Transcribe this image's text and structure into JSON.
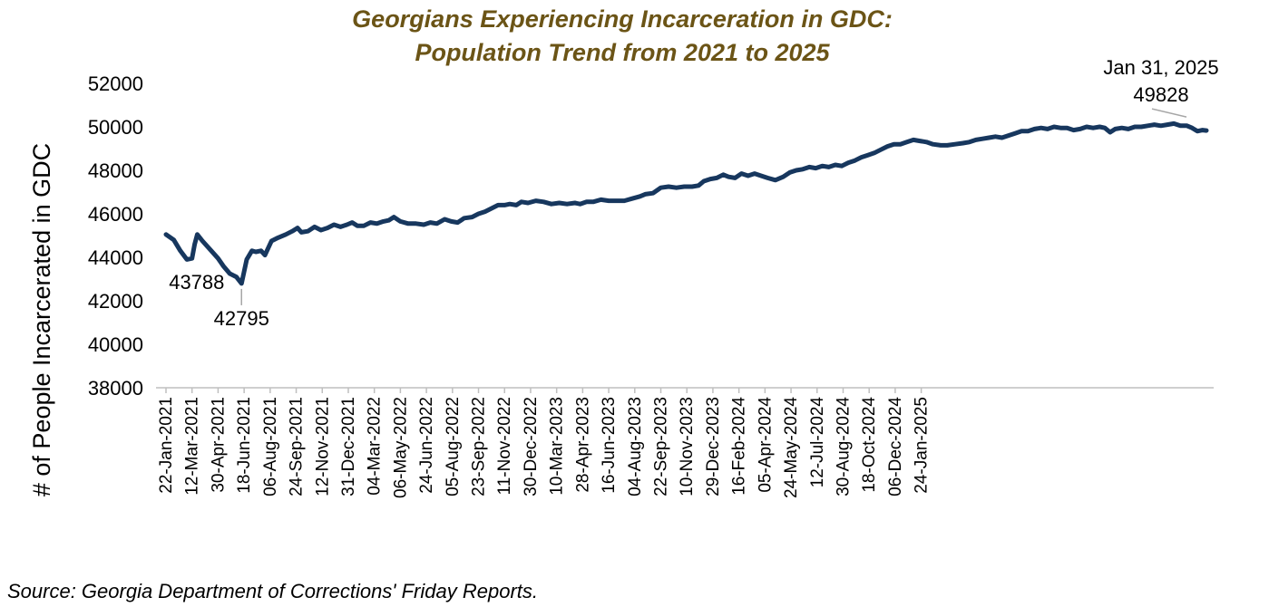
{
  "chart_data": {
    "type": "line",
    "title": [
      "Georgians Experiencing Incarceration in GDC:",
      "Population Trend from 2021 to 2025"
    ],
    "ylabel": "# of People Incarcerated in GDC",
    "xlabel": "",
    "ylim": [
      38000,
      52000
    ],
    "yticks": [
      "52000",
      "50000",
      "48000",
      "46000",
      "44000",
      "42000",
      "40000",
      "38000"
    ],
    "ytick_values": [
      52000,
      50000,
      48000,
      46000,
      44000,
      42000,
      40000,
      38000
    ],
    "xtick_labels": [
      "22-Jan-2021",
      "12-Mar-2021",
      "30-Apr-2021",
      "18-Jun-2021",
      "06-Aug-2021",
      "24-Sep-2021",
      "12-Nov-2021",
      "31-Dec-2021",
      "04-Mar-2022",
      "06-May-2022",
      "24-Jun-2022",
      "05-Aug-2022",
      "23-Sep-2022",
      "11-Nov-2022",
      "30-Dec-2022",
      "10-Mar-2023",
      "28-Apr-2023",
      "16-Jun-2023",
      "04-Aug-2023",
      "22-Sep-2023",
      "10-Nov-2023",
      "29-Dec-2023",
      "16-Feb-2024",
      "05-Apr-2024",
      "24-May-2024",
      "12-Jul-2024",
      "30-Aug-2024",
      "18-Oct-2024",
      "06-Dec-2024",
      "24-Jan-2025"
    ],
    "grid": false,
    "legend": "none",
    "line_color": "#17375e",
    "series": [
      {
        "values": [
          [
            0,
            45050
          ],
          [
            0.3,
            44800
          ],
          [
            0.55,
            44300
          ],
          [
            0.8,
            43900
          ],
          [
            1.0,
            43950
          ],
          [
            1.1,
            44600
          ],
          [
            1.2,
            45050
          ],
          [
            1.4,
            44750
          ],
          [
            1.7,
            44350
          ],
          [
            2.0,
            43950
          ],
          [
            2.2,
            43600
          ],
          [
            2.45,
            43250
          ],
          [
            2.7,
            43100
          ],
          [
            2.9,
            42795
          ],
          [
            3.1,
            43900
          ],
          [
            3.3,
            44300
          ],
          [
            3.45,
            44250
          ],
          [
            3.65,
            44300
          ],
          [
            3.8,
            44100
          ],
          [
            4.05,
            44750
          ],
          [
            4.3,
            44900
          ],
          [
            4.6,
            45050
          ],
          [
            4.85,
            45200
          ],
          [
            5.05,
            45350
          ],
          [
            5.2,
            45150
          ],
          [
            5.45,
            45200
          ],
          [
            5.7,
            45400
          ],
          [
            5.95,
            45250
          ],
          [
            6.2,
            45350
          ],
          [
            6.45,
            45500
          ],
          [
            6.7,
            45400
          ],
          [
            6.95,
            45500
          ],
          [
            7.15,
            45600
          ],
          [
            7.35,
            45450
          ],
          [
            7.6,
            45450
          ],
          [
            7.85,
            45600
          ],
          [
            8.1,
            45550
          ],
          [
            8.35,
            45650
          ],
          [
            8.55,
            45700
          ],
          [
            8.75,
            45850
          ],
          [
            9.0,
            45650
          ],
          [
            9.3,
            45550
          ],
          [
            9.6,
            45550
          ],
          [
            9.9,
            45500
          ],
          [
            10.15,
            45600
          ],
          [
            10.4,
            45550
          ],
          [
            10.7,
            45750
          ],
          [
            10.95,
            45650
          ],
          [
            11.2,
            45600
          ],
          [
            11.45,
            45800
          ],
          [
            11.75,
            45850
          ],
          [
            12.0,
            46000
          ],
          [
            12.25,
            46100
          ],
          [
            12.5,
            46250
          ],
          [
            12.75,
            46400
          ],
          [
            13.0,
            46400
          ],
          [
            13.2,
            46450
          ],
          [
            13.45,
            46400
          ],
          [
            13.65,
            46550
          ],
          [
            13.9,
            46500
          ],
          [
            14.2,
            46600
          ],
          [
            14.5,
            46550
          ],
          [
            14.8,
            46450
          ],
          [
            15.1,
            46500
          ],
          [
            15.4,
            46450
          ],
          [
            15.7,
            46500
          ],
          [
            15.9,
            46450
          ],
          [
            16.15,
            46550
          ],
          [
            16.4,
            46550
          ],
          [
            16.7,
            46650
          ],
          [
            17.0,
            46600
          ],
          [
            17.3,
            46600
          ],
          [
            17.6,
            46600
          ],
          [
            17.9,
            46700
          ],
          [
            18.2,
            46800
          ],
          [
            18.4,
            46900
          ],
          [
            18.7,
            46950
          ],
          [
            19.0,
            47200
          ],
          [
            19.3,
            47250
          ],
          [
            19.6,
            47200
          ],
          [
            19.9,
            47250
          ],
          [
            20.2,
            47250
          ],
          [
            20.45,
            47300
          ],
          [
            20.65,
            47500
          ],
          [
            20.9,
            47600
          ],
          [
            21.15,
            47650
          ],
          [
            21.4,
            47800
          ],
          [
            21.6,
            47700
          ],
          [
            21.85,
            47650
          ],
          [
            22.1,
            47850
          ],
          [
            22.35,
            47750
          ],
          [
            22.6,
            47850
          ],
          [
            22.85,
            47750
          ],
          [
            23.1,
            47650
          ],
          [
            23.4,
            47550
          ],
          [
            23.7,
            47700
          ],
          [
            23.95,
            47900
          ],
          [
            24.2,
            48000
          ],
          [
            24.45,
            48050
          ],
          [
            24.7,
            48150
          ],
          [
            24.95,
            48100
          ],
          [
            25.2,
            48200
          ],
          [
            25.45,
            48150
          ],
          [
            25.7,
            48250
          ],
          [
            25.95,
            48200
          ],
          [
            26.2,
            48350
          ],
          [
            26.45,
            48450
          ],
          [
            26.7,
            48600
          ],
          [
            26.95,
            48700
          ],
          [
            27.2,
            48800
          ],
          [
            27.45,
            48950
          ],
          [
            27.7,
            49100
          ],
          [
            27.95,
            49200
          ],
          [
            28.2,
            49200
          ],
          [
            28.45,
            49300
          ],
          [
            28.7,
            49400
          ],
          [
            28.95,
            49350
          ],
          [
            29.2,
            49300
          ],
          [
            29.45,
            49200
          ],
          [
            29.75,
            49150
          ],
          [
            30.0,
            49150
          ],
          [
            30.3,
            49200
          ],
          [
            30.6,
            49250
          ],
          [
            30.85,
            49300
          ],
          [
            31.1,
            49400
          ],
          [
            31.35,
            49450
          ],
          [
            31.6,
            49500
          ],
          [
            31.85,
            49550
          ],
          [
            32.1,
            49500
          ],
          [
            32.35,
            49600
          ],
          [
            32.6,
            49700
          ],
          [
            32.85,
            49800
          ],
          [
            33.1,
            49800
          ],
          [
            33.35,
            49900
          ],
          [
            33.6,
            49950
          ],
          [
            33.85,
            49900
          ],
          [
            34.1,
            50000
          ],
          [
            34.35,
            49950
          ],
          [
            34.6,
            49950
          ],
          [
            34.85,
            49850
          ],
          [
            35.1,
            49900
          ],
          [
            35.35,
            50000
          ],
          [
            35.6,
            49950
          ],
          [
            35.85,
            50000
          ],
          [
            36.05,
            49950
          ],
          [
            36.25,
            49750
          ],
          [
            36.45,
            49900
          ],
          [
            36.7,
            49950
          ],
          [
            36.95,
            49900
          ],
          [
            37.2,
            50000
          ],
          [
            37.45,
            50000
          ],
          [
            37.7,
            50050
          ],
          [
            37.95,
            50100
          ],
          [
            38.2,
            50050
          ],
          [
            38.45,
            50100
          ],
          [
            38.7,
            50150
          ],
          [
            38.95,
            50050
          ],
          [
            39.2,
            50050
          ],
          [
            39.4,
            49950
          ],
          [
            39.6,
            49800
          ],
          [
            39.8,
            49850
          ],
          [
            39.95,
            49828
          ]
        ]
      }
    ],
    "annotations": [
      {
        "label": "43788",
        "x": 0.85,
        "y": 43788
      },
      {
        "label": "42795",
        "x": 2.9,
        "y": 42795
      },
      {
        "label": "Jan 31, 2025",
        "x": 39.95,
        "y": 49828
      },
      {
        "label": "49828",
        "x": 39.95,
        "y": 49828
      }
    ]
  },
  "footer": {
    "source": "Source: Georgia Department of Corrections' Friday Reports."
  }
}
